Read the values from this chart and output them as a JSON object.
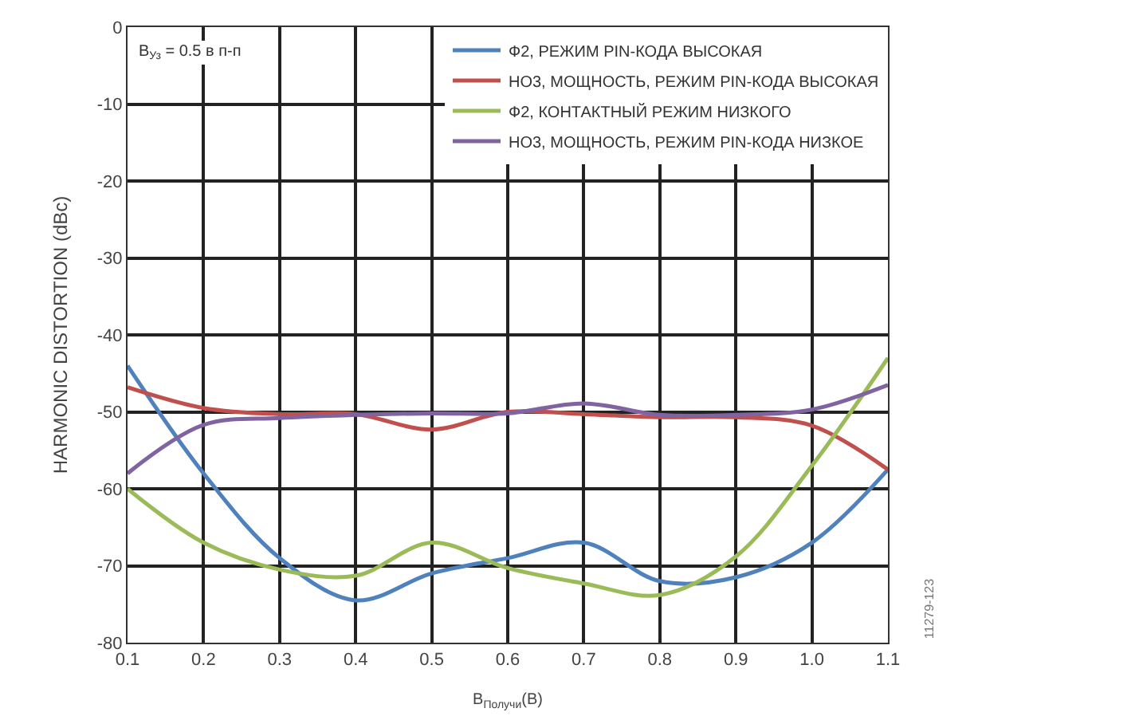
{
  "chart_data": {
    "type": "line",
    "xlabel": "В$_{Получи}$(В)",
    "ylabel": "HARMONIC DISTORTION (dBc)",
    "annotations": [
      "В$_{Уз}$ = 0.5 в п-п",
      "11279-123"
    ],
    "x": [
      0.1,
      0.2,
      0.3,
      0.4,
      0.5,
      0.6,
      0.7,
      0.8,
      0.9,
      1.0,
      1.1
    ],
    "series": [
      {
        "name": "Ф2, РЕЖИМ PIN-КОДА ВЫСОКАЯ",
        "color": "#4f81bd",
        "values": [
          -44,
          -58,
          -69,
          -74.5,
          -71,
          -69,
          -67,
          -72,
          -71.5,
          -67,
          -57.5
        ]
      },
      {
        "name": "НО3, МОЩНОСТЬ, РЕЖИМ PIN-КОДА ВЫСОКАЯ",
        "color": "#c0504d",
        "values": [
          -46.8,
          -49.5,
          -50.3,
          -50.3,
          -52.3,
          -50,
          -50.3,
          -50.7,
          -50.7,
          -51.8,
          -57.5
        ]
      },
      {
        "name": "Ф2, КОНТАКТНЫЙ РЕЖИМ НИЗКОГО",
        "color": "#9bbb59",
        "values": [
          -60,
          -67,
          -70.5,
          -71.3,
          -67,
          -70.3,
          -72.3,
          -73.8,
          -68.8,
          -57,
          -43
        ]
      },
      {
        "name": "НО3, МОЩНОСТЬ, РЕЖИМ PIN-КОДА НИЗКОЕ",
        "color": "#8064a2",
        "values": [
          -58,
          -51.7,
          -50.8,
          -50.4,
          -50.2,
          -50.2,
          -48.9,
          -50.4,
          -50.4,
          -49.7,
          -46.5
        ]
      }
    ],
    "xlim": [
      0.1,
      1.1
    ],
    "xticks": [
      0.1,
      0.2,
      0.3,
      0.4,
      0.5,
      0.6,
      0.7,
      0.8,
      0.9,
      {
        "value": 1.0,
        "label": "1.0"
      },
      1.1
    ],
    "ylim": [
      -80,
      0
    ],
    "yticks": [
      -80,
      -70,
      -60,
      -50,
      -40,
      -30,
      -20,
      -10,
      0
    ],
    "grid": true,
    "legend": "top right",
    "marker": "none",
    "line_style": "solid"
  }
}
